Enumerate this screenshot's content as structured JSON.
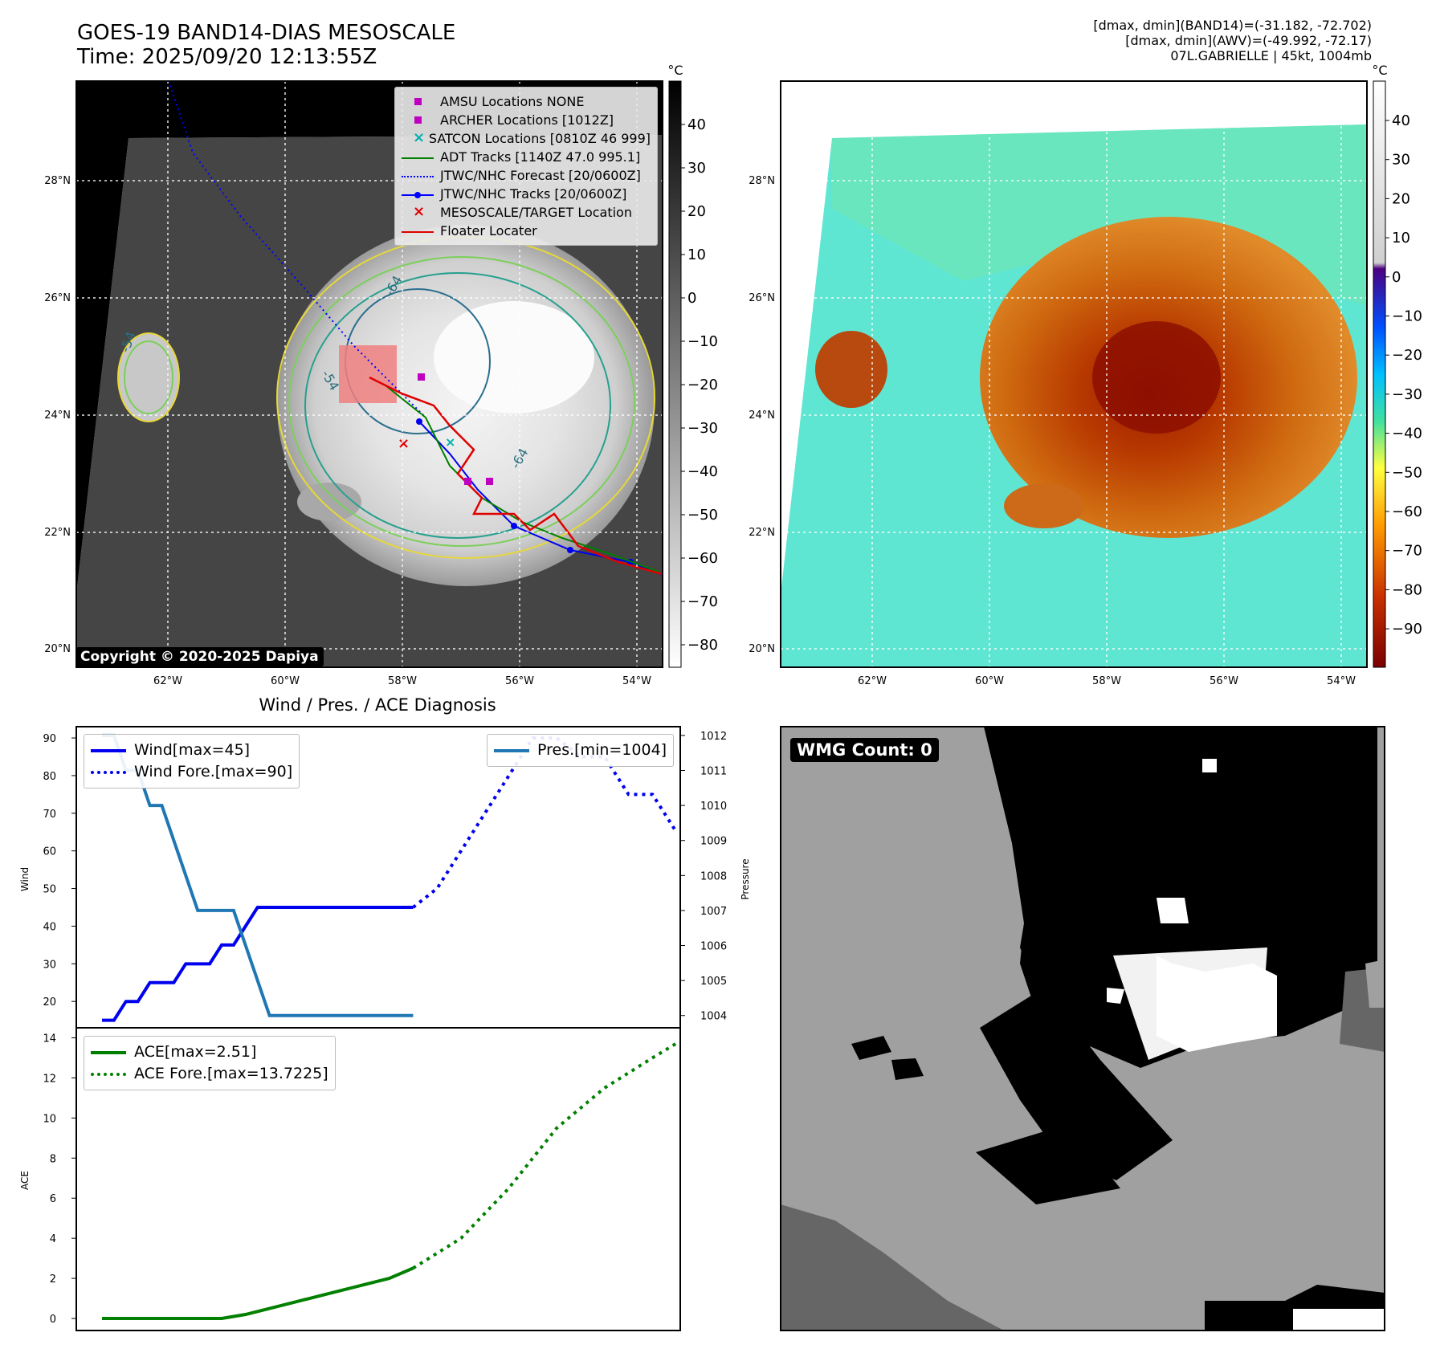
{
  "header": {
    "title_line1": "GOES-19 BAND14-DIAS MESOSCALE",
    "title_line2": "Time: 2025/09/20 12:13:55Z",
    "right_line1": "[dmax, dmin](BAND14)=(-31.182, -72.702)",
    "right_line2": "[dmax, dmin](AWV)=(-49.992, -72.17)",
    "right_line3": "07L.GABRIELLE | 45kt, 1004mb"
  },
  "maps": {
    "lat_labels": [
      "28°N",
      "26°N",
      "24°N",
      "22°N",
      "20°N"
    ],
    "lon_labels": [
      "62°W",
      "60°W",
      "58°W",
      "56°W",
      "54°W"
    ],
    "unit": "°C",
    "ir_colorbar_ticks": [
      "40",
      "30",
      "20",
      "10",
      "0",
      "−10",
      "−20",
      "−30",
      "−40",
      "−50",
      "−60",
      "−70",
      "−80"
    ],
    "color_colorbar_ticks": [
      "40",
      "30",
      "20",
      "10",
      "0",
      "−10",
      "−20",
      "−30",
      "−40",
      "−50",
      "−60",
      "−70",
      "−80",
      "−90"
    ],
    "contour_labels": [
      "-54",
      "-64",
      "-54",
      "-64"
    ],
    "copyright": "Copyright © 2020-2025 Dapiya",
    "legend": [
      {
        "label": "AMSU Locations NONE",
        "color": "#c000c0",
        "marker": "square"
      },
      {
        "label": "ARCHER Locations [1012Z]",
        "color": "#c000c0",
        "marker": "square"
      },
      {
        "label": "SATCON Locations [0810Z 46 999]",
        "color": "#00b0b0",
        "marker": "x"
      },
      {
        "label": "ADT Tracks [1140Z 47.0 995.1]",
        "color": "#008000",
        "marker": "line"
      },
      {
        "label": "JTWC/NHC Forecast [20/0600Z]",
        "color": "#0000ff",
        "marker": "dotted"
      },
      {
        "label": "JTWC/NHC Tracks [20/0600Z]",
        "color": "#0000ff",
        "marker": "line-dot"
      },
      {
        "label": "MESOSCALE/TARGET Location",
        "color": "#e00000",
        "marker": "x"
      },
      {
        "label": "Floater Locater",
        "color": "#e00000",
        "marker": "line"
      }
    ]
  },
  "chart_data": [
    {
      "type": "line",
      "title": "Wind / Pres. / ACE Diagnosis",
      "ylabel": "Wind",
      "y2label": "Pressure",
      "ylim": [
        13,
        93
      ],
      "y2lim": [
        1003.65,
        1012.25
      ],
      "yticks": [
        20,
        30,
        40,
        50,
        60,
        70,
        80,
        90
      ],
      "y2ticks": [
        1004,
        1005,
        1006,
        1007,
        1008,
        1009,
        1010,
        1011,
        1012
      ],
      "x": [
        0,
        1,
        2,
        3,
        4,
        5,
        6,
        7,
        8,
        9,
        10,
        11,
        12,
        13,
        14,
        15,
        16,
        17,
        18,
        19,
        20,
        21,
        22,
        23,
        24,
        25,
        26,
        27,
        28,
        29,
        30,
        31,
        32,
        33,
        34,
        35,
        36,
        37,
        38,
        39,
        40,
        41,
        42
      ],
      "series": [
        {
          "name": "Wind[max=45]",
          "color": "#0000ee",
          "style": "solid",
          "x": [
            0,
            1,
            2,
            3,
            4,
            5,
            6,
            7,
            8,
            9,
            10,
            11,
            12,
            13,
            14,
            15,
            16,
            17,
            18,
            19,
            20,
            21,
            22,
            23,
            24,
            25,
            26
          ],
          "values": [
            15,
            15,
            20,
            20,
            25,
            25,
            25,
            30,
            30,
            30,
            35,
            35,
            40,
            45,
            45,
            45,
            45,
            45,
            45,
            45,
            45,
            45,
            45,
            45,
            45,
            45,
            45
          ]
        },
        {
          "name": "Wind Fore.[max=90]",
          "color": "#0000ee",
          "style": "dotted",
          "x": [
            26,
            28,
            30,
            32,
            34,
            36,
            38,
            40,
            42,
            44,
            46,
            48
          ],
          "values": [
            45,
            50,
            60,
            70,
            80,
            90,
            90,
            85,
            85,
            75,
            75,
            65
          ]
        },
        {
          "name": "Pres.[min=1004]",
          "color": "#1f77b4",
          "style": "solid",
          "axis": "right",
          "x": [
            0,
            1,
            2,
            3,
            4,
            5,
            6,
            7,
            8,
            9,
            10,
            11,
            12,
            13,
            14,
            15,
            16,
            17,
            18,
            19,
            20,
            21,
            22,
            23,
            24,
            25,
            26
          ],
          "values": [
            1012,
            1012,
            1011,
            1011,
            1010,
            1010,
            1009,
            1008,
            1007,
            1007,
            1007,
            1007,
            1006,
            1005,
            1004,
            1004,
            1004,
            1004,
            1004,
            1004,
            1004,
            1004,
            1004,
            1004,
            1004,
            1004,
            1004
          ]
        }
      ]
    },
    {
      "type": "line",
      "ylabel": "ACE",
      "ylim": [
        -0.6,
        14.5
      ],
      "yticks": [
        0,
        2,
        4,
        6,
        8,
        10,
        12,
        14
      ],
      "series": [
        {
          "name": "ACE[max=2.51]",
          "color": "#008000",
          "style": "solid",
          "x": [
            0,
            4,
            8,
            10,
            12,
            14,
            16,
            18,
            20,
            22,
            24,
            26
          ],
          "values": [
            0,
            0,
            0,
            0,
            0.2,
            0.5,
            0.8,
            1.1,
            1.4,
            1.7,
            2.0,
            2.51
          ]
        },
        {
          "name": "ACE Fore.[max=13.7225]",
          "color": "#008000",
          "style": "dotted",
          "x": [
            26,
            30,
            34,
            38,
            42,
            46,
            48
          ],
          "values": [
            2.51,
            4.0,
            6.5,
            9.5,
            11.5,
            13.0,
            13.7225
          ]
        }
      ]
    }
  ],
  "wmg": {
    "label": "WMG Count: 0"
  }
}
